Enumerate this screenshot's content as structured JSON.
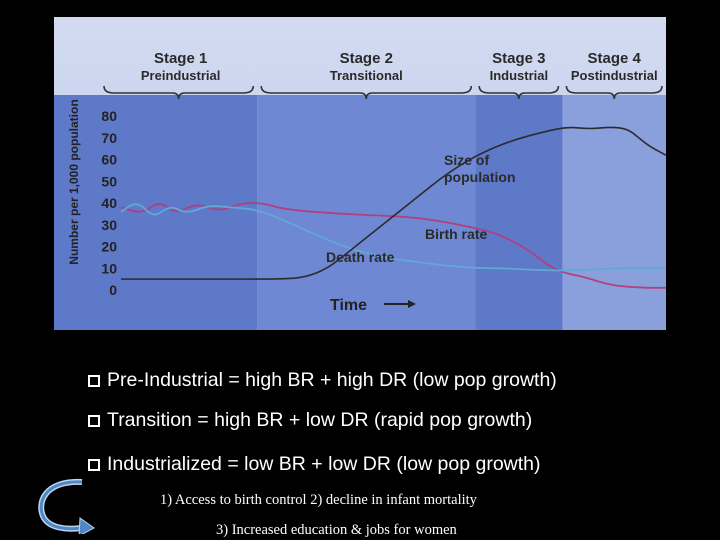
{
  "chart_data": {
    "type": "line",
    "stages": [
      {
        "title": "Stage 1",
        "subtitle": "Preindustrial"
      },
      {
        "title": "Stage 2",
        "subtitle": "Transitional"
      },
      {
        "title": "Stage 3",
        "subtitle": "Industrial"
      },
      {
        "title": "Stage 4",
        "subtitle": "Postindustrial"
      }
    ],
    "ylabel": "Number per 1,000 population",
    "xlabel": "Time",
    "ylim": [
      0,
      80
    ],
    "yticks": [
      "0",
      "10",
      "20",
      "30",
      "40",
      "50",
      "60",
      "70",
      "80"
    ],
    "xlim": [
      0,
      100
    ],
    "stage_bounds": [
      0,
      25,
      65,
      81,
      100
    ],
    "grid": false,
    "series": [
      {
        "name": "Birth rate",
        "color": "#b0407e",
        "points": [
          [
            0,
            38
          ],
          [
            4,
            35
          ],
          [
            7,
            41
          ],
          [
            10,
            35
          ],
          [
            14,
            40
          ],
          [
            18,
            36
          ],
          [
            22,
            40
          ],
          [
            26,
            40
          ],
          [
            30,
            37
          ],
          [
            40,
            35
          ],
          [
            50,
            34
          ],
          [
            55,
            33
          ],
          [
            60,
            31
          ],
          [
            66,
            28
          ],
          [
            70,
            25
          ],
          [
            75,
            18
          ],
          [
            78,
            12
          ],
          [
            81,
            8
          ],
          [
            85,
            6
          ],
          [
            90,
            2
          ],
          [
            96,
            1
          ],
          [
            100,
            1
          ]
        ]
      },
      {
        "name": "Death rate",
        "color": "#5fa8d8",
        "points": [
          [
            0,
            36
          ],
          [
            3,
            41
          ],
          [
            6,
            33
          ],
          [
            9,
            39
          ],
          [
            12,
            35
          ],
          [
            16,
            39
          ],
          [
            20,
            38
          ],
          [
            25,
            37
          ],
          [
            30,
            32
          ],
          [
            36,
            25
          ],
          [
            42,
            19
          ],
          [
            48,
            15
          ],
          [
            54,
            13
          ],
          [
            60,
            11
          ],
          [
            66,
            10
          ],
          [
            70,
            10
          ],
          [
            78,
            9
          ],
          [
            84,
            9
          ],
          [
            90,
            10
          ],
          [
            96,
            10
          ],
          [
            100,
            10
          ]
        ]
      },
      {
        "name": "Size of population",
        "color": "#2b2b2b",
        "points": [
          [
            0,
            5
          ],
          [
            15,
            5
          ],
          [
            30,
            5
          ],
          [
            34,
            6
          ],
          [
            38,
            10
          ],
          [
            42,
            18
          ],
          [
            48,
            30
          ],
          [
            54,
            42
          ],
          [
            60,
            54
          ],
          [
            66,
            63
          ],
          [
            72,
            69
          ],
          [
            78,
            73
          ],
          [
            82,
            75
          ],
          [
            86,
            74
          ],
          [
            90,
            75
          ],
          [
            93,
            74
          ],
          [
            95,
            70
          ],
          [
            97,
            66
          ],
          [
            100,
            62
          ]
        ]
      }
    ]
  },
  "bullets": [
    "Pre-Industrial = high BR + high DR (low pop growth)",
    "Transition = high BR + low DR (rapid pop growth)",
    "Industrialized = low BR + low DR (low pop growth)"
  ],
  "notes": {
    "line1": "1)  Access to birth control   2) decline in infant mortality",
    "line2": "3) Increased education & jobs for women"
  },
  "colors": {
    "background": "#000000",
    "stage1_band": "#5f79c9",
    "stage2_band": "#6f88d3",
    "stage3_band": "#5f79c9",
    "stage4_band": "#8aa0dc"
  },
  "icons": {
    "curved_arrow": "curved-arrow-icon",
    "bullet": "checkbox-bullet-icon"
  }
}
